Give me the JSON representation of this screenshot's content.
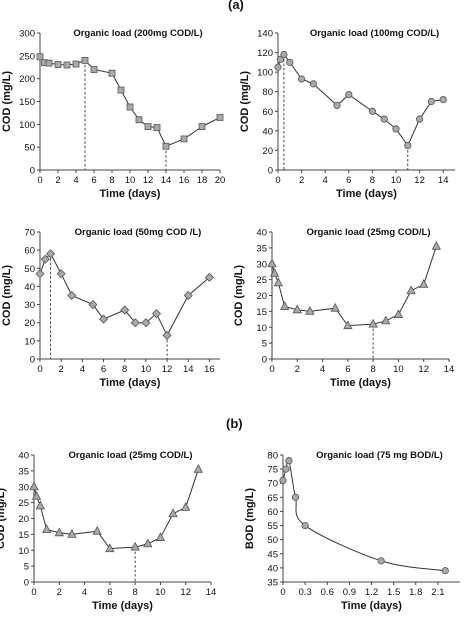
{
  "panel_labels": {
    "a": "(a)",
    "b": "(b)"
  },
  "chart_data": [
    {
      "type": "line",
      "title": "Organic load (200mg COD/L)",
      "xlabel": "Time (days)",
      "ylabel": "COD (mg/L)",
      "xlim": [
        0,
        20
      ],
      "ylim": [
        0,
        300
      ],
      "xticks": [
        0,
        2,
        4,
        6,
        8,
        10,
        12,
        14,
        16,
        18,
        20
      ],
      "yticks": [
        0,
        50,
        100,
        150,
        200,
        250,
        300
      ],
      "marker": "square",
      "x": [
        0,
        0.5,
        1,
        2,
        3,
        4,
        5,
        6,
        8,
        9,
        10,
        11,
        12,
        13,
        14,
        16,
        18,
        20
      ],
      "y": [
        248,
        235,
        234,
        231,
        230,
        232,
        240,
        220,
        212,
        175,
        138,
        110,
        95,
        93,
        52,
        68,
        95,
        115
      ],
      "vlines": [
        5,
        14
      ]
    },
    {
      "type": "line",
      "title": "Organic load (100mg COD/L)",
      "xlabel": "Time (days)",
      "ylabel": "COD (mg/L)",
      "xlim": [
        0,
        15
      ],
      "ylim": [
        0,
        140
      ],
      "xticks": [
        0,
        2,
        4,
        6,
        8,
        10,
        12,
        14
      ],
      "yticks": [
        0,
        20,
        40,
        60,
        80,
        100,
        120,
        140
      ],
      "marker": "circle",
      "x": [
        0,
        0.2,
        0.5,
        1,
        2,
        3,
        5,
        6,
        8,
        9,
        10,
        11,
        12,
        13,
        14
      ],
      "y": [
        105,
        113,
        118,
        110,
        93,
        88,
        66,
        77,
        60,
        52,
        42,
        25,
        52,
        70,
        72
      ],
      "vlines": [
        0.5,
        11
      ]
    },
    {
      "type": "line",
      "title": "Organic load (50mg COD /L)",
      "xlabel": "Time (days)",
      "ylabel": "COD (mg/L)",
      "xlim": [
        0,
        17
      ],
      "ylim": [
        0,
        70
      ],
      "xticks": [
        0,
        2,
        4,
        6,
        8,
        10,
        12,
        14,
        16
      ],
      "yticks": [
        0,
        10,
        20,
        30,
        40,
        50,
        60,
        70
      ],
      "marker": "diamond",
      "x": [
        0,
        0.5,
        1,
        2,
        3,
        5,
        6,
        8,
        9,
        10,
        11,
        12,
        14,
        16
      ],
      "y": [
        47,
        55,
        58,
        47,
        35,
        30,
        22,
        27,
        20,
        20,
        25,
        13,
        35,
        45
      ],
      "vlines": [
        1,
        12
      ]
    },
    {
      "type": "line",
      "title": "Organic load (25mg COD/L)",
      "xlabel": "Time (days)",
      "ylabel": "COD (mg/L)",
      "xlim": [
        0,
        14
      ],
      "ylim": [
        0,
        40
      ],
      "xticks": [
        0,
        2,
        4,
        6,
        8,
        10,
        12,
        14
      ],
      "yticks": [
        0,
        5,
        10,
        15,
        20,
        25,
        30,
        35,
        40
      ],
      "marker": "triangle",
      "x": [
        0,
        0.2,
        0.5,
        1,
        2,
        3,
        5,
        6,
        8,
        9,
        10,
        11,
        12,
        13
      ],
      "y": [
        30,
        27,
        24,
        16.5,
        15.5,
        15,
        16,
        10.5,
        11,
        12,
        14,
        21.5,
        23.5,
        35.5
      ],
      "vlines": [
        0,
        8
      ]
    },
    {
      "type": "line",
      "title": "Organic load (25mg COD/L)",
      "xlabel": "Time (days)",
      "ylabel": "COD (mg/L)",
      "xlim": [
        0,
        14
      ],
      "ylim": [
        0,
        40
      ],
      "xticks": [
        0,
        2,
        4,
        6,
        8,
        10,
        12,
        14
      ],
      "yticks": [
        0,
        5,
        10,
        15,
        20,
        25,
        30,
        35,
        40
      ],
      "marker": "triangle",
      "x": [
        0,
        0.2,
        0.5,
        1,
        2,
        3,
        5,
        6,
        8,
        9,
        10,
        11,
        12,
        13
      ],
      "y": [
        30,
        27,
        24,
        16.5,
        15.5,
        15,
        16,
        10.5,
        11,
        12,
        14,
        21.5,
        23.5,
        35.5
      ],
      "vlines": [
        0,
        8
      ]
    },
    {
      "type": "line",
      "title": "Organic load (75 mg BOD/L)",
      "xlabel": "Time (days)",
      "ylabel": "BOD (mg/L)",
      "xlim": [
        0,
        2.4
      ],
      "ylim": [
        35,
        80
      ],
      "xticks": [
        0,
        0.3,
        0.6,
        0.9,
        1.2,
        1.5,
        1.8,
        2.1
      ],
      "xtick_labels": [
        "0",
        "0.3",
        "0.6",
        "0.9",
        "1.2",
        "1.5",
        "1.8",
        "2.1"
      ],
      "yticks": [
        35,
        40,
        45,
        50,
        55,
        60,
        65,
        70,
        75,
        80
      ],
      "marker": "circle",
      "x": [
        0,
        0.04,
        0.08,
        0.17,
        0.3,
        1.33,
        2.2
      ],
      "y": [
        71,
        75,
        78,
        65,
        55,
        42.5,
        39
      ],
      "vlines": [],
      "smooth": true
    }
  ]
}
